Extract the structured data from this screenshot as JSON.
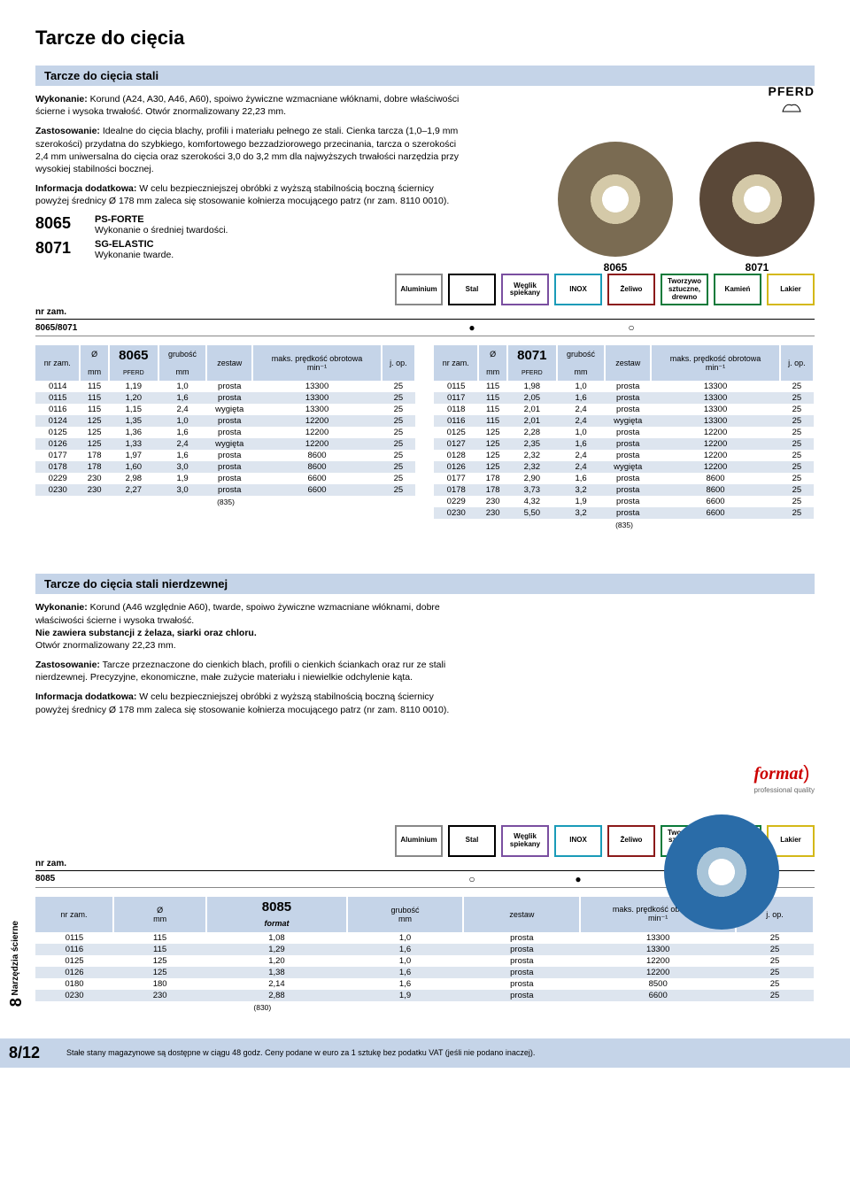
{
  "title": "Tarcze do cięcia",
  "section1": {
    "heading": "Tarcze do cięcia stali",
    "wykonanie_label": "Wykonanie:",
    "wykonanie": " Korund (A24, A30, A46, A60), spoiwo żywiczne wzmacniane włóknami, dobre właściwości ścierne i wysoka trwałość. Otwór znormalizowany 22,23 mm.",
    "zast_label": "Zastosowanie:",
    "zast": " Idealne do cięcia blachy, profili i materiału pełnego ze stali. Cienka tarcza (1,0–1,9 mm szerokości) przydatna do szybkiego, komfortowego bezzadziorowego przecinania, tarcza o szerokości 2,4 mm uniwersalna do cięcia oraz szerokości 3,0 do 3,2 mm dla najwyższych trwałości narzędzia przy wysokiej stabilności bocznej.",
    "info_label": "Informacja dodatkowa:",
    "info": " W celu bezpieczniejszej obróbki z wyższą stabilnością boczną ściernicy powyżej średnicy Ø 178 mm zaleca się stosowanie kołnierza mocującego patrz (nr zam. 8110 0010).",
    "code1": "8065",
    "code1_name": "PS-FORTE",
    "code1_desc": "Wykonanie o średniej twardości.",
    "code2": "8071",
    "code2_name": "SG-ELASTIC",
    "code2_desc": "Wykonanie twarde.",
    "brand": "PFERD",
    "disc1_label": "8065",
    "disc2_label": "8071",
    "compat_label": "8065/8071"
  },
  "materials": [
    {
      "label": "Aluminium",
      "color": "#888888"
    },
    {
      "label": "Stal",
      "color": "#000000"
    },
    {
      "label": "Węglik spiekany",
      "color": "#7a4fa0"
    },
    {
      "label": "INOX",
      "color": "#1a9bb8"
    },
    {
      "label": "Żeliwo",
      "color": "#8b1a1a"
    },
    {
      "label": "Tworzywo sztuczne, drewno",
      "color": "#0a7a3a"
    },
    {
      "label": "Kamień",
      "color": "#0a7a3a"
    },
    {
      "label": "Lakier",
      "color": "#d4b818"
    }
  ],
  "nrzam": "nr zam.",
  "compat1": {
    "stal": "●",
    "zeliwo": "○"
  },
  "table_headers": {
    "nr": "nr zam.",
    "dia": "Ø",
    "dia_unit": "mm",
    "grubosc": "grubość",
    "grubosc_unit": "mm",
    "zestaw": "zestaw",
    "predkosc": "maks. prędkość obrotowa",
    "predkosc_unit": "min⁻¹",
    "jop": "j. op.",
    "brand_sub": "PFERD"
  },
  "table8065": {
    "code": "8065",
    "foot": "(835)",
    "rows": [
      [
        "0114",
        "115",
        "1,19",
        "1,0",
        "prosta",
        "13300",
        "25"
      ],
      [
        "0115",
        "115",
        "1,20",
        "1,6",
        "prosta",
        "13300",
        "25"
      ],
      [
        "0116",
        "115",
        "1,15",
        "2,4",
        "wygięta",
        "13300",
        "25"
      ],
      [
        "0124",
        "125",
        "1,35",
        "1,0",
        "prosta",
        "12200",
        "25"
      ],
      [
        "0125",
        "125",
        "1,36",
        "1,6",
        "prosta",
        "12200",
        "25"
      ],
      [
        "0126",
        "125",
        "1,33",
        "2,4",
        "wygięta",
        "12200",
        "25"
      ],
      [
        "0177",
        "178",
        "1,97",
        "1,6",
        "prosta",
        "8600",
        "25"
      ],
      [
        "0178",
        "178",
        "1,60",
        "3,0",
        "prosta",
        "8600",
        "25"
      ],
      [
        "0229",
        "230",
        "2,98",
        "1,9",
        "prosta",
        "6600",
        "25"
      ],
      [
        "0230",
        "230",
        "2,27",
        "3,0",
        "prosta",
        "6600",
        "25"
      ]
    ]
  },
  "table8071": {
    "code": "8071",
    "foot": "(835)",
    "rows": [
      [
        "0115",
        "115",
        "1,98",
        "1,0",
        "prosta",
        "13300",
        "25"
      ],
      [
        "0117",
        "115",
        "2,05",
        "1,6",
        "prosta",
        "13300",
        "25"
      ],
      [
        "0118",
        "115",
        "2,01",
        "2,4",
        "prosta",
        "13300",
        "25"
      ],
      [
        "0116",
        "115",
        "2,01",
        "2,4",
        "wygięta",
        "13300",
        "25"
      ],
      [
        "0125",
        "125",
        "2,28",
        "1,0",
        "prosta",
        "12200",
        "25"
      ],
      [
        "0127",
        "125",
        "2,35",
        "1,6",
        "prosta",
        "12200",
        "25"
      ],
      [
        "0128",
        "125",
        "2,32",
        "2,4",
        "prosta",
        "12200",
        "25"
      ],
      [
        "0126",
        "125",
        "2,32",
        "2,4",
        "wygięta",
        "12200",
        "25"
      ],
      [
        "0177",
        "178",
        "2,90",
        "1,6",
        "prosta",
        "8600",
        "25"
      ],
      [
        "0178",
        "178",
        "3,73",
        "3,2",
        "prosta",
        "8600",
        "25"
      ],
      [
        "0229",
        "230",
        "4,32",
        "1,9",
        "prosta",
        "6600",
        "25"
      ],
      [
        "0230",
        "230",
        "5,50",
        "3,2",
        "prosta",
        "6600",
        "25"
      ]
    ]
  },
  "section2": {
    "heading": "Tarcze do cięcia stali nierdzewnej",
    "wykonanie_label": "Wykonanie:",
    "wykonanie": " Korund (A46 względnie A60), twarde, spoiwo żywiczne wzmacniane włóknami, dobre właściwości ścierne i wysoka trwałość.",
    "bold1": "Nie zawiera substancji z żelaza, siarki oraz chloru.",
    "bold2": "Otwór znormalizowany 22,23 mm.",
    "zast_label": "Zastosowanie:",
    "zast": " Tarcze przeznaczone do cienkich blach, profili o cienkich ściankach oraz rur ze stali nierdzewnej. Precyzyjne, ekonomiczne, małe zużycie materiału i niewielkie odchylenie kąta.",
    "info_label": "Informacja dodatkowa:",
    "info": " W celu bezpieczniejszej obróbki z wyższą stabilnością boczną ściernicy powyżej średnicy Ø 178 mm zaleca się stosowanie kołnierza mocującego patrz (nr zam. 8110 0010).",
    "brand": "format",
    "brand_sub": "professional quality",
    "compat_label": "8085"
  },
  "compat2": {
    "stal": "○",
    "inox": "●"
  },
  "table8085": {
    "code": "8085",
    "foot": "(830)",
    "brand": "format",
    "rows": [
      [
        "0115",
        "115",
        "1,08",
        "1,0",
        "prosta",
        "13300",
        "25"
      ],
      [
        "0116",
        "115",
        "1,29",
        "1,6",
        "prosta",
        "13300",
        "25"
      ],
      [
        "0125",
        "125",
        "1,20",
        "1,0",
        "prosta",
        "12200",
        "25"
      ],
      [
        "0126",
        "125",
        "1,38",
        "1,6",
        "prosta",
        "12200",
        "25"
      ],
      [
        "0180",
        "180",
        "2,14",
        "1,6",
        "prosta",
        "8500",
        "25"
      ],
      [
        "0230",
        "230",
        "2,88",
        "1,9",
        "prosta",
        "6600",
        "25"
      ]
    ]
  },
  "sidebar": {
    "num": "8",
    "text": "Narzędzia ścierne"
  },
  "footer": {
    "page": "8/12",
    "text": "Stałe stany magazynowe są dostępne w ciągu 48 godz. Ceny podane w euro za 1 sztukę bez podatku VAT (jeśli nie podano inaczej)."
  }
}
